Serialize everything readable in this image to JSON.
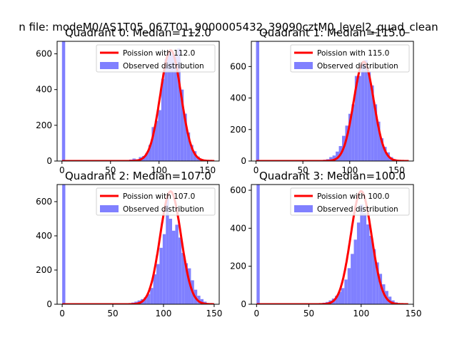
{
  "figure": {
    "suptitle": "n file: modeM0/AS1T05_067T01_9000005432_39090cztM0_level2_quad_clean"
  },
  "chart_data": [
    {
      "type": "bar",
      "title": "Quadrant 0: Median=112.0",
      "xlim": [
        -5,
        162
      ],
      "ylim": [
        0,
        670
      ],
      "xticks": [
        0,
        50,
        100,
        150
      ],
      "yticks": [
        0,
        200,
        400,
        600
      ],
      "legend_placement": "upper-right",
      "legend": [
        {
          "label": "Poission with 112.0",
          "color": "#ff0000",
          "kind": "line"
        },
        {
          "label": "Observed distribution",
          "color": "#8080ff",
          "kind": "patch"
        }
      ],
      "median": 112.0,
      "curve_peak": 620,
      "curve_sigma": 10.6,
      "bin_width": 3.3,
      "histogram": [
        [
          0,
          670
        ],
        [
          3.3,
          0
        ],
        [
          69.3,
          8
        ],
        [
          72.6,
          14
        ],
        [
          75.9,
          10
        ],
        [
          79.2,
          22
        ],
        [
          82.5,
          28
        ],
        [
          85.8,
          45
        ],
        [
          89.1,
          90
        ],
        [
          92.4,
          190
        ],
        [
          95.7,
          225
        ],
        [
          99,
          285
        ],
        [
          102.3,
          460
        ],
        [
          105.6,
          570
        ],
        [
          108.9,
          600
        ],
        [
          112.2,
          610
        ],
        [
          115.5,
          590
        ],
        [
          118.8,
          630
        ],
        [
          122.1,
          400
        ],
        [
          125.4,
          265
        ],
        [
          128.7,
          160
        ],
        [
          132,
          90
        ],
        [
          135.3,
          55
        ],
        [
          138.6,
          25
        ],
        [
          141.9,
          12
        ],
        [
          145.2,
          5
        ],
        [
          148.5,
          2
        ]
      ]
    },
    {
      "type": "bar",
      "title": "Quadrant 1: Median=115.0",
      "xlim": [
        -5,
        168
      ],
      "ylim": [
        0,
        760
      ],
      "xticks": [
        0,
        50,
        100,
        150
      ],
      "yticks": [
        0,
        200,
        400,
        600
      ],
      "legend_placement": "upper-right",
      "legend": [
        {
          "label": "Poission with 115.0",
          "color": "#ff0000",
          "kind": "line"
        },
        {
          "label": "Observed distribution",
          "color": "#8080ff",
          "kind": "patch"
        }
      ],
      "median": 115.0,
      "curve_peak": 630,
      "curve_sigma": 10.7,
      "bin_width": 3.4,
      "histogram": [
        [
          0,
          760
        ],
        [
          3.4,
          0
        ],
        [
          71.4,
          8
        ],
        [
          74.8,
          12
        ],
        [
          78.2,
          25
        ],
        [
          81.6,
          35
        ],
        [
          85,
          60
        ],
        [
          88.4,
          95
        ],
        [
          91.8,
          160
        ],
        [
          95.2,
          225
        ],
        [
          98.6,
          300
        ],
        [
          102,
          360
        ],
        [
          105.4,
          540
        ],
        [
          108.8,
          540
        ],
        [
          112.2,
          620
        ],
        [
          115.6,
          640
        ],
        [
          119,
          570
        ],
        [
          122.4,
          480
        ],
        [
          125.8,
          360
        ],
        [
          129.2,
          250
        ],
        [
          132.6,
          145
        ],
        [
          136,
          90
        ],
        [
          139.4,
          55
        ],
        [
          142.8,
          25
        ],
        [
          146.2,
          12
        ],
        [
          149.6,
          4
        ]
      ]
    },
    {
      "type": "bar",
      "title": "Quadrant 2: Median=107.0",
      "xlim": [
        -5,
        155
      ],
      "ylim": [
        0,
        700
      ],
      "xticks": [
        0,
        50,
        100,
        150
      ],
      "yticks": [
        0,
        200,
        400,
        600
      ],
      "legend_placement": "upper-right",
      "legend": [
        {
          "label": "Poission with 107.0",
          "color": "#ff0000",
          "kind": "line"
        },
        {
          "label": "Observed distribution",
          "color": "#8080ff",
          "kind": "patch"
        }
      ],
      "median": 107.0,
      "curve_peak": 660,
      "curve_sigma": 10.3,
      "bin_width": 3.1,
      "histogram": [
        [
          0,
          700
        ],
        [
          3.1,
          0
        ],
        [
          65.1,
          5
        ],
        [
          68.2,
          10
        ],
        [
          71.3,
          15
        ],
        [
          74.4,
          22
        ],
        [
          77.5,
          30
        ],
        [
          80.6,
          40
        ],
        [
          83.7,
          60
        ],
        [
          86.8,
          95
        ],
        [
          89.9,
          175
        ],
        [
          93,
          235
        ],
        [
          96.1,
          330
        ],
        [
          99.2,
          410
        ],
        [
          102.3,
          620
        ],
        [
          105.4,
          500
        ],
        [
          108.5,
          430
        ],
        [
          111.6,
          465
        ],
        [
          114.7,
          390
        ],
        [
          117.8,
          300
        ],
        [
          120.9,
          240
        ],
        [
          124,
          210
        ],
        [
          127.1,
          140
        ],
        [
          130.2,
          85
        ],
        [
          133.3,
          50
        ],
        [
          136.4,
          30
        ],
        [
          139.5,
          15
        ],
        [
          142.6,
          6
        ],
        [
          145.7,
          3
        ]
      ]
    },
    {
      "type": "bar",
      "title": "Quadrant 3: Median=100.0",
      "xlim": [
        -5,
        150
      ],
      "ylim": [
        0,
        630
      ],
      "xticks": [
        0,
        50,
        100,
        150
      ],
      "yticks": [
        0,
        200,
        400,
        600
      ],
      "legend_placement": "upper-right",
      "legend": [
        {
          "label": "Poission with 100.0",
          "color": "#ff0000",
          "kind": "line"
        },
        {
          "label": "Observed distribution",
          "color": "#8080ff",
          "kind": "patch"
        }
      ],
      "median": 100.0,
      "curve_peak": 595,
      "curve_sigma": 10.0,
      "bin_width": 3.0,
      "histogram": [
        [
          0,
          630
        ],
        [
          3,
          0
        ],
        [
          60,
          5
        ],
        [
          63,
          8
        ],
        [
          66,
          12
        ],
        [
          69,
          20
        ],
        [
          72,
          30
        ],
        [
          75,
          45
        ],
        [
          78,
          65
        ],
        [
          81,
          85
        ],
        [
          84,
          130
        ],
        [
          87,
          190
        ],
        [
          90,
          265
        ],
        [
          93,
          340
        ],
        [
          96,
          430
        ],
        [
          99,
          525
        ],
        [
          102,
          480
        ],
        [
          105,
          420
        ],
        [
          108,
          360
        ],
        [
          111,
          290
        ],
        [
          114,
          220
        ],
        [
          117,
          160
        ],
        [
          120,
          105
        ],
        [
          123,
          70
        ],
        [
          126,
          40
        ],
        [
          129,
          20
        ],
        [
          132,
          10
        ],
        [
          135,
          4
        ]
      ]
    }
  ]
}
